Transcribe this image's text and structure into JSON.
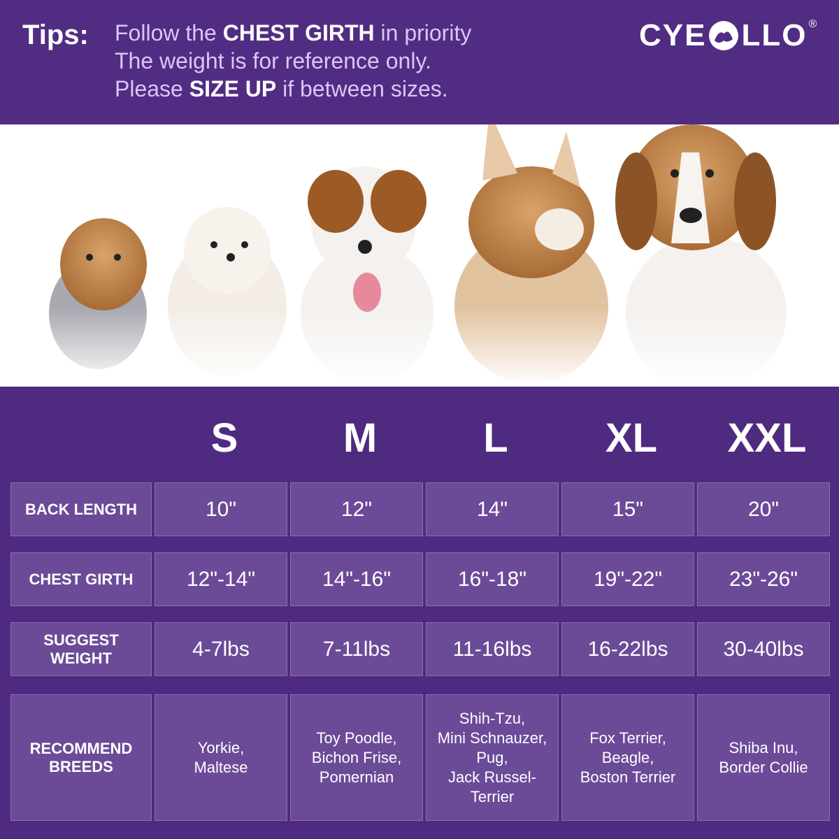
{
  "header": {
    "tips_label": "Tips:",
    "lines": [
      [
        {
          "text": "Follow the ",
          "bold": false
        },
        {
          "text": "CHEST GIRTH",
          "bold": true
        },
        {
          "text": " in priority",
          "bold": false
        }
      ],
      [
        {
          "text": "The weight is for reference only.",
          "bold": false
        }
      ],
      [
        {
          "text": "Please ",
          "bold": false
        },
        {
          "text": "SIZE UP",
          "bold": true
        },
        {
          "text": " if between sizes.",
          "bold": false
        }
      ]
    ],
    "logo": {
      "before": "CYE",
      "after": "LLO",
      "mark": "®"
    }
  },
  "table": {
    "sizes": [
      "S",
      "M",
      "L",
      "XL",
      "XXL"
    ],
    "rows": [
      {
        "label": [
          "BACK  LENGTH"
        ],
        "cells": [
          [
            "10\""
          ],
          [
            "12\""
          ],
          [
            "14\""
          ],
          [
            "15\""
          ],
          [
            "20\""
          ]
        ]
      },
      {
        "label": [
          "CHEST GIRTH"
        ],
        "cells": [
          [
            "12\"-14\""
          ],
          [
            "14\"-16\""
          ],
          [
            "16\"-18\""
          ],
          [
            "19\"-22\""
          ],
          [
            "23\"-26\""
          ]
        ]
      },
      {
        "label": [
          "SUGGEST WEIGHT"
        ],
        "cells": [
          [
            "4-7lbs"
          ],
          [
            "7-11lbs"
          ],
          [
            "11-16lbs"
          ],
          [
            "16-22lbs"
          ],
          [
            "30-40lbs"
          ]
        ]
      },
      {
        "label": [
          "RECOMMEND",
          "BREEDS"
        ],
        "cells": [
          [
            "Yorkie,",
            "Maltese"
          ],
          [
            "Toy Poodle,",
            "Bichon Frise,",
            "Pomernian"
          ],
          [
            "Shih-Tzu,",
            "Mini Schnauzer,",
            "Pug,",
            "Jack Russel-",
            "Terrier"
          ],
          [
            "Fox Terrier,",
            "Beagle,",
            "Boston Terrier"
          ],
          [
            "Shiba Inu,",
            "Border Collie"
          ]
        ]
      }
    ]
  }
}
